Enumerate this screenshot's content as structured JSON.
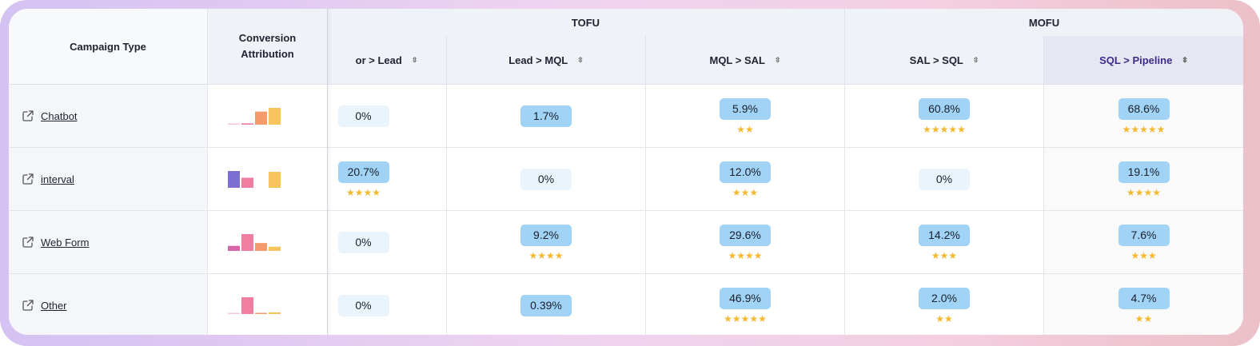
{
  "header": {
    "campaign_type": "Campaign Type",
    "conversion_attribution_line1": "Conversion",
    "conversion_attribution_line2": "Attribution",
    "groups": [
      "TOFU",
      "MOFU"
    ],
    "columns": [
      "or > Lead",
      "Lead > MQL",
      "MQL > SAL",
      "SAL > SQL",
      "SQL > Pipeline"
    ],
    "sorted_column": "SQL > Pipeline",
    "sort_icon": "sort-arrows-icon"
  },
  "rows": [
    {
      "name": "Chatbot",
      "attribution": [
        0.03,
        0.08,
        0.78,
        1.0
      ],
      "cells": [
        {
          "value": "0%",
          "stars": ""
        },
        {
          "value": "1.7%",
          "stars": ""
        },
        {
          "value": "5.9%",
          "stars": "★★"
        },
        {
          "value": "60.8%",
          "stars": "★★★★★"
        },
        {
          "value": "68.6%",
          "stars": "★★★★★"
        }
      ]
    },
    {
      "name": "interval",
      "attribution": [
        1.0,
        0.6,
        0,
        0.95
      ],
      "cells": [
        {
          "value": "20.7%",
          "stars": "★★★★"
        },
        {
          "value": "0%",
          "stars": ""
        },
        {
          "value": "12.0%",
          "stars": "★★★"
        },
        {
          "value": "0%",
          "stars": ""
        },
        {
          "value": "19.1%",
          "stars": "★★★★"
        }
      ]
    },
    {
      "name": "Web Form",
      "attribution": [
        0.3,
        1.0,
        0.47,
        0.25
      ],
      "cells": [
        {
          "value": "0%",
          "stars": ""
        },
        {
          "value": "9.2%",
          "stars": "★★★★"
        },
        {
          "value": "29.6%",
          "stars": "★★★★"
        },
        {
          "value": "14.2%",
          "stars": "★★★"
        },
        {
          "value": "7.6%",
          "stars": "★★★"
        }
      ]
    },
    {
      "name": "Other",
      "attribution": [
        0.05,
        1.0,
        0.05,
        0.1
      ],
      "cells": [
        {
          "value": "0%",
          "stars": ""
        },
        {
          "value": "0.39%",
          "stars": ""
        },
        {
          "value": "46.9%",
          "stars": "★★★★★"
        },
        {
          "value": "2.0%",
          "stars": "★★"
        },
        {
          "value": "4.7%",
          "stars": "★★"
        }
      ]
    }
  ],
  "colors": {
    "pill_active": "#a0d3f6",
    "pill_zero": "#e9f4fc",
    "star": "#f5b82e",
    "attribution_bars": [
      "#7b6fd0",
      "#f07ea0",
      "#f59a6b",
      "#f7c35e"
    ],
    "attribution_bars_alt": [
      "#d565a7",
      "#f07ea0",
      "#f59a6b",
      "#f7c35e"
    ],
    "sorted_header_text": "#3d2b8c"
  },
  "icons": {
    "external_link": "external-link-icon"
  }
}
